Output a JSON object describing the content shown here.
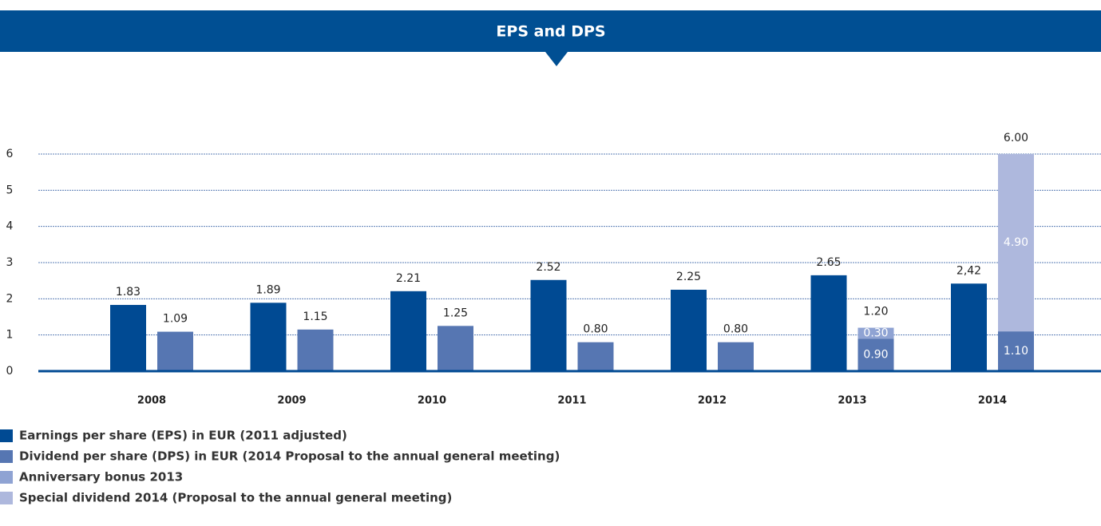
{
  "chart_data": {
    "type": "bar",
    "title": "EPS and DPS",
    "categories": [
      "2008",
      "2009",
      "2010",
      "2011",
      "2012",
      "2013",
      "2014"
    ],
    "series": [
      {
        "name": "Earnings per share (EPS) in EUR (2011 adjusted)",
        "color": "#004a93",
        "stack": "eps",
        "values": [
          1.83,
          1.89,
          2.21,
          2.52,
          2.25,
          2.65,
          2.42
        ],
        "value_labels": [
          "1.83",
          "1.89",
          "2.21",
          "2.52",
          "2.25",
          "2.65",
          "2,42"
        ]
      },
      {
        "name": "Dividend per share (DPS) in EUR (2014 Proposal to the annual general meeting)",
        "color": "#5676b2",
        "stack": "dps",
        "values": [
          1.09,
          1.15,
          1.25,
          0.8,
          0.8,
          0.9,
          1.1
        ],
        "value_labels": [
          "1.09",
          "1.15",
          "1.25",
          "0.80",
          "0.80",
          "0.90",
          "1.10"
        ]
      },
      {
        "name": "Anniversary bonus 2013",
        "color": "#8fa3d3",
        "stack": "dps",
        "values": [
          null,
          null,
          null,
          null,
          null,
          0.3,
          null
        ],
        "value_labels": [
          null,
          null,
          null,
          null,
          null,
          "0.30",
          null
        ]
      },
      {
        "name": "Special dividend 2014 (Proposal to the annual general meeting)",
        "color": "#aeb8dd",
        "stack": "dps",
        "values": [
          null,
          null,
          null,
          null,
          null,
          null,
          4.9
        ],
        "value_labels": [
          null,
          null,
          null,
          null,
          null,
          null,
          "4.90"
        ]
      }
    ],
    "totals": [
      null,
      null,
      null,
      null,
      null,
      1.2,
      6.0
    ],
    "total_labels": [
      null,
      null,
      null,
      null,
      null,
      "1.20",
      "6.00"
    ],
    "ylim": [
      0,
      6
    ],
    "yticks": [
      0,
      1,
      2,
      3,
      4,
      5,
      6
    ],
    "grid": true
  }
}
